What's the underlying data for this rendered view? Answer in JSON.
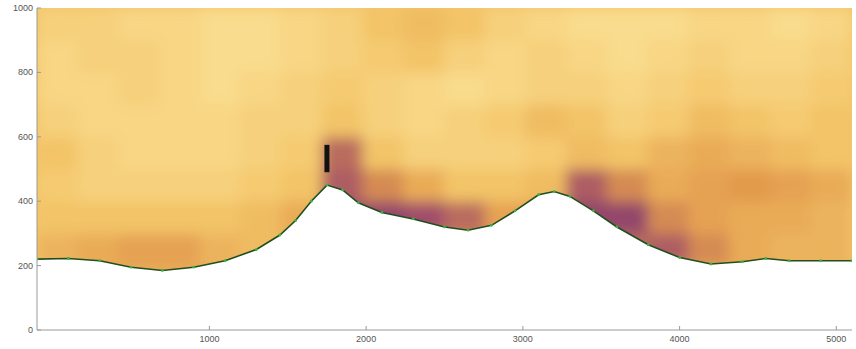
{
  "chart_data": {
    "type": "heatmap",
    "xlim": [
      -100,
      5100
    ],
    "ylim": [
      0,
      1000
    ],
    "xticks": [
      1000,
      2000,
      3000,
      4000,
      5000
    ],
    "yticks": [
      0,
      200,
      400,
      600,
      800,
      1000
    ],
    "grid": false,
    "zlim": [
      0,
      1
    ],
    "x_edges": [
      -100,
      160,
      420,
      680,
      940,
      1200,
      1460,
      1720,
      1980,
      2240,
      2500,
      2760,
      3020,
      3280,
      3540,
      3800,
      4060,
      4320,
      4580,
      4840,
      5100
    ],
    "y_edges": [
      0,
      100,
      200,
      300,
      400,
      500,
      600,
      700,
      800,
      900,
      1000
    ],
    "cells": [
      [
        0.4,
        0.4,
        0.4,
        0.4,
        0.4,
        0.4,
        0.4,
        0.4,
        0.4,
        0.4,
        0.4,
        0.4,
        0.4,
        0.4,
        0.4,
        0.4,
        0.4,
        0.4,
        0.4,
        0.4
      ],
      [
        0.45,
        0.45,
        0.45,
        0.45,
        0.45,
        0.45,
        0.45,
        0.45,
        0.45,
        0.45,
        0.45,
        0.45,
        0.45,
        0.45,
        0.45,
        0.45,
        0.45,
        0.45,
        0.45,
        0.45
      ],
      [
        0.4,
        0.45,
        0.5,
        0.5,
        0.4,
        0.35,
        0.4,
        0.5,
        0.6,
        0.6,
        0.6,
        0.6,
        0.6,
        0.6,
        0.7,
        0.75,
        0.6,
        0.45,
        0.4,
        0.4
      ],
      [
        0.3,
        0.3,
        0.3,
        0.3,
        0.3,
        0.35,
        0.45,
        0.8,
        0.85,
        0.8,
        0.7,
        0.5,
        0.5,
        0.85,
        0.85,
        0.6,
        0.5,
        0.45,
        0.45,
        0.4
      ],
      [
        0.25,
        0.2,
        0.2,
        0.2,
        0.2,
        0.25,
        0.3,
        0.75,
        0.6,
        0.45,
        0.3,
        0.3,
        0.35,
        0.75,
        0.6,
        0.45,
        0.5,
        0.55,
        0.5,
        0.45
      ],
      [
        0.3,
        0.2,
        0.15,
        0.15,
        0.15,
        0.2,
        0.25,
        0.7,
        0.3,
        0.2,
        0.2,
        0.2,
        0.25,
        0.35,
        0.3,
        0.4,
        0.45,
        0.4,
        0.35,
        0.3
      ],
      [
        0.2,
        0.15,
        0.15,
        0.15,
        0.15,
        0.2,
        0.2,
        0.3,
        0.2,
        0.15,
        0.2,
        0.25,
        0.35,
        0.3,
        0.2,
        0.25,
        0.35,
        0.3,
        0.25,
        0.3
      ],
      [
        0.15,
        0.15,
        0.2,
        0.15,
        0.1,
        0.15,
        0.2,
        0.25,
        0.2,
        0.15,
        0.1,
        0.15,
        0.2,
        0.2,
        0.15,
        0.2,
        0.25,
        0.2,
        0.2,
        0.25
      ],
      [
        0.15,
        0.2,
        0.2,
        0.15,
        0.1,
        0.1,
        0.15,
        0.2,
        0.25,
        0.3,
        0.2,
        0.15,
        0.2,
        0.15,
        0.1,
        0.15,
        0.2,
        0.15,
        0.15,
        0.2
      ],
      [
        0.2,
        0.2,
        0.15,
        0.15,
        0.1,
        0.1,
        0.15,
        0.2,
        0.3,
        0.35,
        0.3,
        0.2,
        0.15,
        0.1,
        0.1,
        0.1,
        0.15,
        0.15,
        0.1,
        0.15
      ]
    ],
    "terrain": {
      "color": "#3cb043",
      "marker": "dot",
      "x": [
        -100,
        100,
        300,
        500,
        700,
        900,
        1100,
        1300,
        1450,
        1550,
        1650,
        1750,
        1850,
        1950,
        2100,
        2300,
        2500,
        2650,
        2800,
        2950,
        3100,
        3200,
        3300,
        3450,
        3600,
        3800,
        4000,
        4200,
        4400,
        4550,
        4700,
        4900,
        5100
      ],
      "y": [
        220,
        222,
        215,
        195,
        185,
        195,
        215,
        250,
        295,
        340,
        400,
        450,
        435,
        395,
        365,
        345,
        320,
        310,
        325,
        370,
        420,
        430,
        415,
        370,
        320,
        265,
        225,
        205,
        212,
        222,
        215,
        215,
        215
      ]
    },
    "probe": {
      "x": 1750,
      "y": [
        490,
        575
      ],
      "color": "#111111"
    }
  }
}
